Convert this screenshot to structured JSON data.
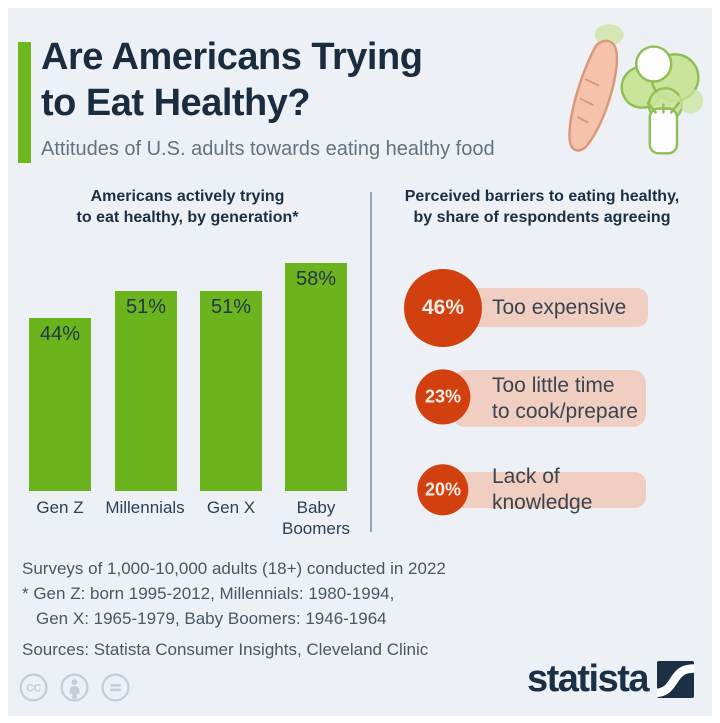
{
  "header": {
    "title_line1": "Are Americans Trying",
    "title_line2": "to Eat Healthy?",
    "subtitle": "Attitudes of U.S. adults towards eating healthy food"
  },
  "chart_data": [
    {
      "type": "bar",
      "orientation": "vertical",
      "title": "Americans actively trying to eat healthy, by generation*",
      "title_lines": [
        "Americans actively trying",
        "to eat healthy, by generation*"
      ],
      "categories": [
        "Gen Z",
        "Millennials",
        "Gen X",
        "Baby Boomers"
      ],
      "values": [
        44,
        51,
        51,
        58
      ],
      "value_labels": [
        "44%",
        "51%",
        "51%",
        "58%"
      ],
      "unit": "percent",
      "ylim": [
        0,
        60
      ],
      "grid": false,
      "bar_color": "#6CB41E",
      "label_position": "inside-top"
    },
    {
      "type": "bar",
      "subtype": "proportional-circle-pictogram",
      "title": "Perceived barriers to eating healthy, by share of respondents agreeing",
      "title_lines": [
        "Perceived barriers to eating healthy,",
        "by share of respondents agreeing"
      ],
      "categories": [
        "Too expensive",
        "Too little time to cook/prepare",
        "Lack of knowledge"
      ],
      "category_lines": [
        [
          "Too expensive"
        ],
        [
          "Too little time",
          "to cook/prepare"
        ],
        [
          "Lack of knowledge"
        ]
      ],
      "values": [
        46,
        23,
        20
      ],
      "value_labels": [
        "46%",
        "23%",
        "20%"
      ],
      "unit": "percent",
      "circle_color": "#D2400F",
      "pill_color": "#F0CFC2",
      "circle_area_proportional": true
    }
  ],
  "footnotes": {
    "line1": "Surveys of 1,000-10,000 adults (18+) conducted in 2022",
    "line2": "* Gen Z: born 1995-2012, Millennials: 1980-1994,",
    "line3": "Gen X: 1965-1979, Baby Boomers: 1946-1964",
    "sources": "Sources: Statista Consumer Insights, Cleveland Clinic"
  },
  "branding": {
    "logo_text": "statista",
    "license_icons": [
      "cc-icon",
      "attribution-person-icon",
      "equals-icon"
    ]
  },
  "colors": {
    "background": "#EDF1F6",
    "accent_green": "#6FB51D",
    "title_navy": "#1C2C3F",
    "subtitle_gray": "#66727D",
    "barrier_orange": "#D2400F",
    "pill_salmon": "#F0CFC2",
    "footnote_gray": "#4A5762"
  }
}
